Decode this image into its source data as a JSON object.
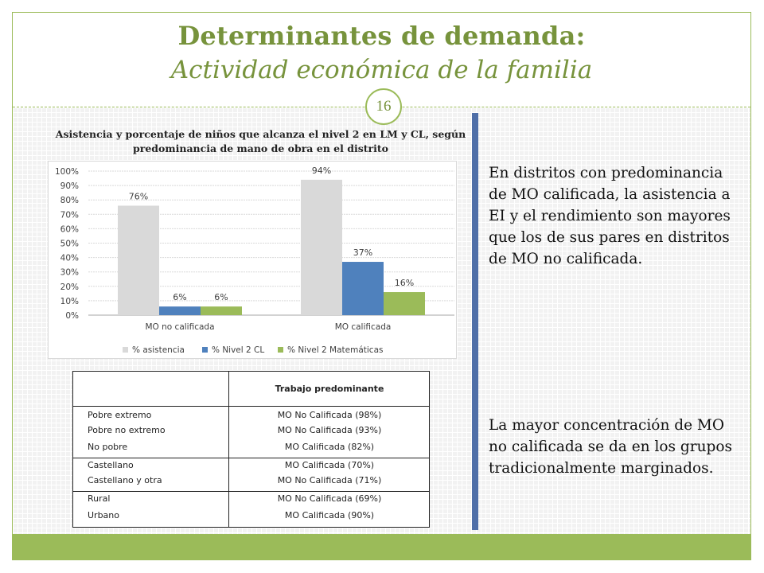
{
  "slide": {
    "title": "Determinantes de demanda:",
    "subtitle": "Actividad económica de la familia",
    "page_number": "16"
  },
  "chart_title": "Asistencia y porcentaje de niños que alcanza el nivel 2 en LM y CL, según predominancia de mano de obra en el distrito",
  "chart_data": {
    "type": "bar",
    "categories": [
      "MO no calificada",
      "MO calificada"
    ],
    "series": [
      {
        "name": "% asistencia",
        "values": [
          76,
          94
        ],
        "labels": [
          "76%",
          "94%"
        ],
        "color": "#d9d9d9"
      },
      {
        "name": "% Nivel 2 CL",
        "values": [
          6,
          37
        ],
        "labels": [
          "6%",
          "37%"
        ],
        "color": "#4f81bd"
      },
      {
        "name": "% Nivel 2 Matemáticas",
        "values": [
          6,
          16
        ],
        "labels": [
          "6%",
          "16%"
        ],
        "color": "#9bbb59"
      }
    ],
    "yticks": [
      "0%",
      "10%",
      "20%",
      "30%",
      "40%",
      "50%",
      "60%",
      "70%",
      "80%",
      "90%",
      "100%"
    ],
    "ylim": [
      0,
      100
    ],
    "grid": true,
    "legend_position": "bottom"
  },
  "table": {
    "header": "Trabajo predominante",
    "rows": [
      {
        "label": "Pobre extremo",
        "value": "MO No Calificada (98%)"
      },
      {
        "label": "Pobre no extremo",
        "value": "MO No Calificada (93%)"
      },
      {
        "label": "No pobre",
        "value": "MO Calificada (82%)"
      },
      {
        "label": "Castellano",
        "value": "MO Calificada (70%)"
      },
      {
        "label": "Castellano y otra",
        "value": "MO No Calificada (71%)"
      },
      {
        "label": "Rural",
        "value": "MO No Calificada (69%)"
      },
      {
        "label": "Urbano",
        "value": "MO Calificada (90%)"
      }
    ]
  },
  "text": {
    "paragraph1": "En distritos con predominancia de MO calificada, la asistencia a EI y el rendimiento son mayores que los de sus pares en distritos de MO no calificada.",
    "paragraph2": "La mayor concentración de MO no calificada se da en los grupos tradicionalmente marginados."
  },
  "colors": {
    "accent_green": "#9bbb59",
    "title_green": "#77933c",
    "divider_blue": "#4f6fa8"
  }
}
